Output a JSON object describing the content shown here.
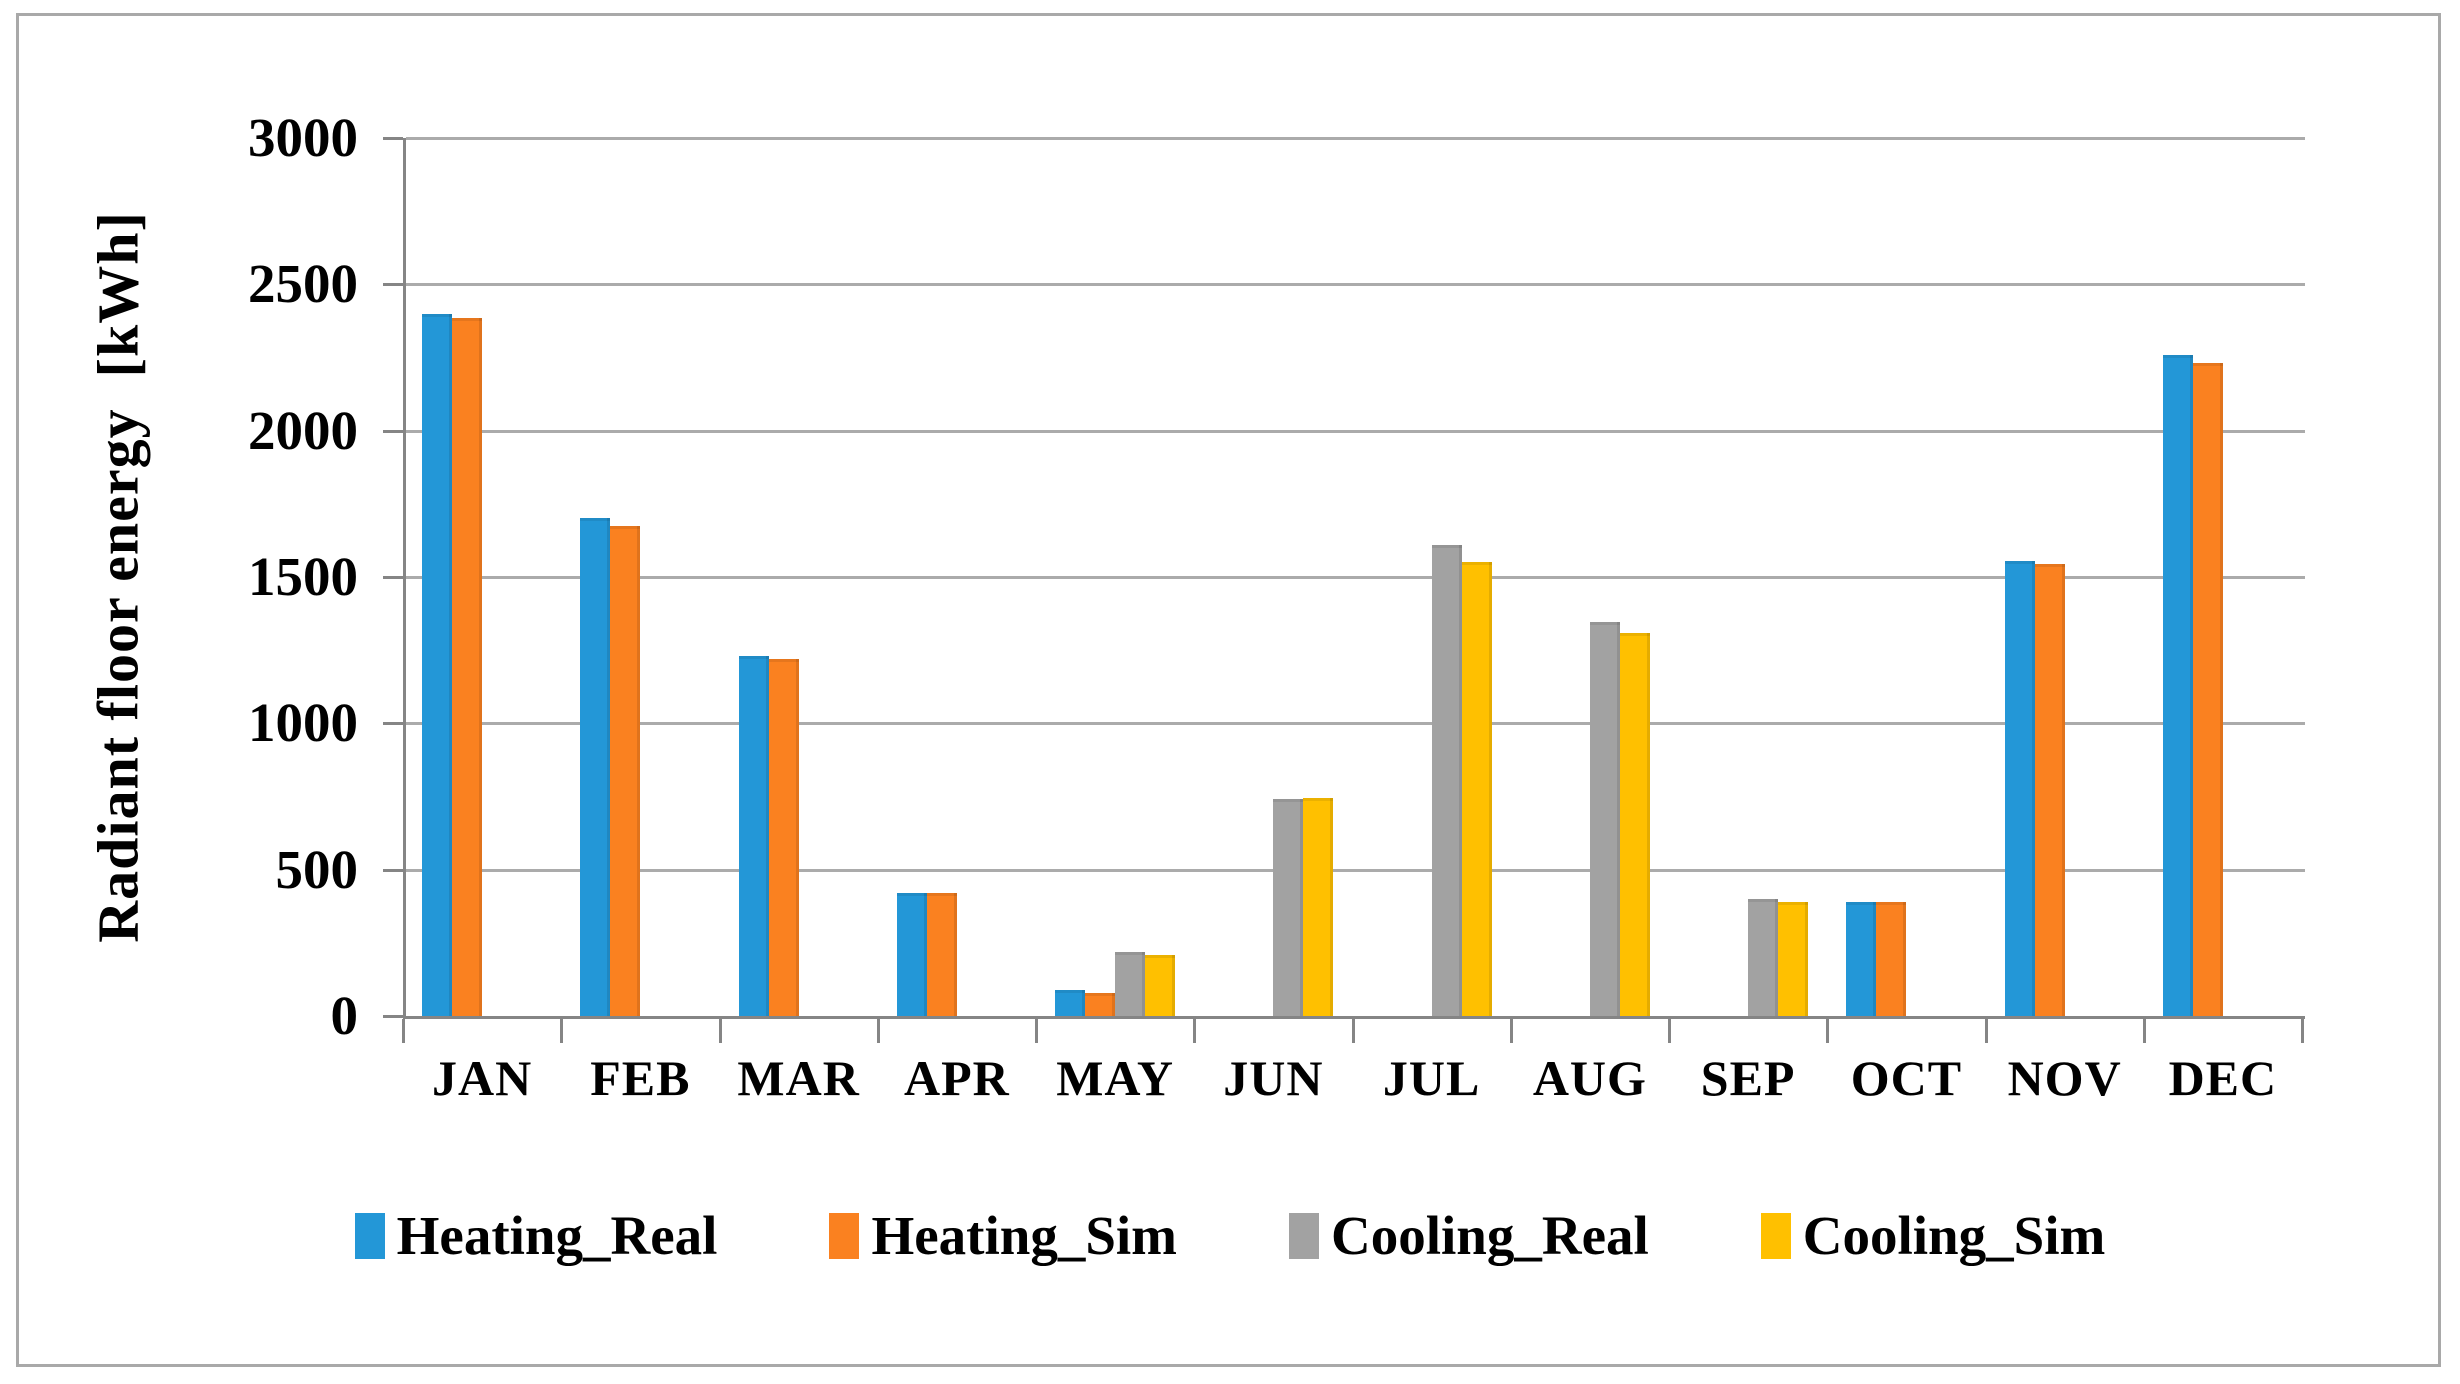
{
  "figure": {
    "background_color": "#FFFFFF",
    "border_color": "#A9A9A9",
    "axis_color": "#858585",
    "grid_color": "#ABABAB"
  },
  "chart_data": {
    "type": "bar",
    "title": "",
    "xlabel": "",
    "ylabel": "Radiant floor energy  [kWh]",
    "ylim": [
      0,
      3000
    ],
    "ytick_step": 500,
    "yticks": [
      0,
      500,
      1000,
      1500,
      2000,
      2500,
      3000
    ],
    "grid": "horizontal",
    "legend_position": "bottom",
    "categories": [
      "JAN",
      "FEB",
      "MAR",
      "APR",
      "MAY",
      "JUN",
      "JUL",
      "AUG",
      "SEP",
      "OCT",
      "NOV",
      "DEC"
    ],
    "series": [
      {
        "name": "Heating_Real",
        "color": "#2397D7",
        "values": [
          2400,
          1700,
          1230,
          420,
          90,
          0,
          0,
          0,
          0,
          390,
          1555,
          2260
        ]
      },
      {
        "name": "Heating_Sim",
        "color": "#FA8120",
        "values": [
          2385,
          1675,
          1220,
          420,
          80,
          0,
          0,
          0,
          0,
          390,
          1545,
          2230
        ]
      },
      {
        "name": "Cooling_Real",
        "color": "#A2A2A2",
        "values": [
          0,
          0,
          0,
          0,
          220,
          740,
          1610,
          1345,
          400,
          0,
          0,
          0
        ]
      },
      {
        "name": "Cooling_Sim",
        "color": "#FFC000",
        "values": [
          0,
          0,
          0,
          0,
          210,
          745,
          1550,
          1310,
          390,
          0,
          0,
          0
        ]
      }
    ]
  }
}
